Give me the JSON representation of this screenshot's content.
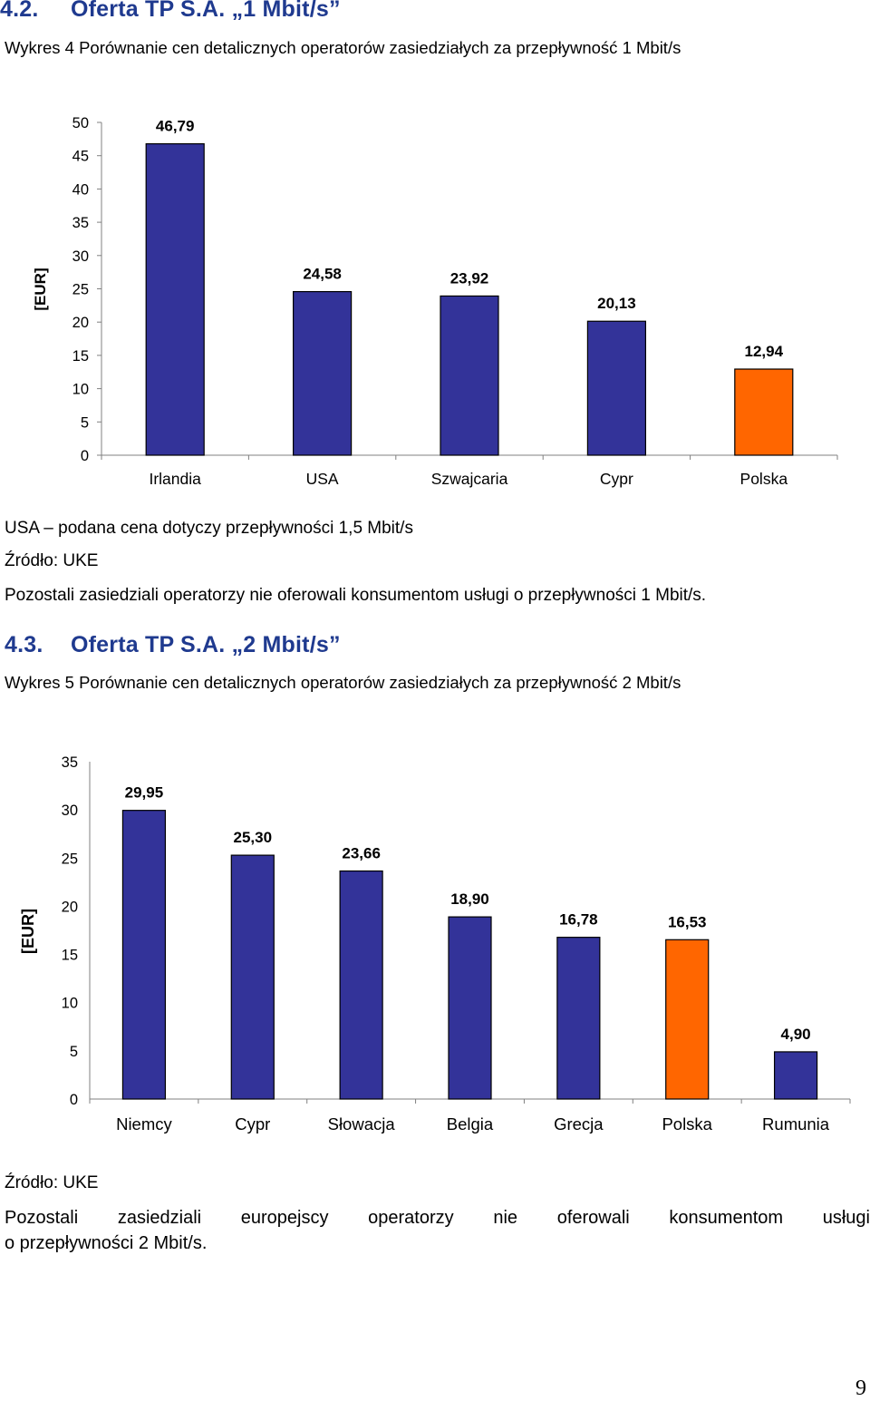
{
  "section1": {
    "number": "4.2.",
    "title": "Oferta TP S.A. „1 Mbit/s”",
    "caption": "Wykres 4 Porównanie cen detalicznych operatorów zasiedziałych za przepływność 1 Mbit/s",
    "note": "USA – podana cena dotyczy przepływności 1,5 Mbit/s",
    "source": "Źródło: UKE",
    "paragraph": "Pozostali zasiedziali operatorzy nie oferowali konsumentom usługi o przepływności 1 Mbit/s."
  },
  "section2": {
    "number": "4.3.",
    "title": "Oferta TP S.A. „2 Mbit/s”",
    "caption": "Wykres 5 Porównanie cen detalicznych operatorów zasiedziałych za przepływność 2 Mbit/s",
    "source": "Źródło: UKE",
    "paragraph_line1_words": [
      "Pozostali",
      "zasiedziali",
      "europejscy",
      "operatorzy",
      "nie",
      "oferowali",
      "konsumentom",
      "usługi"
    ],
    "paragraph_line2": "o przepływności 2 Mbit/s."
  },
  "page_number": "9",
  "colors": {
    "bar": "#333399",
    "highlight": "#ff6600",
    "heading": "#1f3a8f"
  },
  "chart_data": [
    {
      "type": "bar",
      "ylabel": "[EUR]",
      "ylim": [
        0,
        50
      ],
      "yticks": [
        0,
        5,
        10,
        15,
        20,
        25,
        30,
        35,
        40,
        45,
        50
      ],
      "categories": [
        "Irlandia",
        "USA",
        "Szwajcaria",
        "Cypr",
        "Polska"
      ],
      "values": [
        46.79,
        24.58,
        23.92,
        20.13,
        12.94
      ],
      "value_labels": [
        "46,79",
        "24,58",
        "23,92",
        "20,13",
        "12,94"
      ],
      "highlight": "Polska",
      "grid": false
    },
    {
      "type": "bar",
      "ylabel": "[EUR]",
      "ylim": [
        0,
        35
      ],
      "yticks": [
        0,
        5,
        10,
        15,
        20,
        25,
        30,
        35
      ],
      "categories": [
        "Niemcy",
        "Cypr",
        "Słowacja",
        "Belgia",
        "Grecja",
        "Polska",
        "Rumunia"
      ],
      "values": [
        29.95,
        25.3,
        23.66,
        18.9,
        16.78,
        16.53,
        4.9
      ],
      "value_labels": [
        "29,95",
        "25,30",
        "23,66",
        "18,90",
        "16,78",
        "16,53",
        "4,90"
      ],
      "highlight": "Polska",
      "grid": false
    }
  ]
}
